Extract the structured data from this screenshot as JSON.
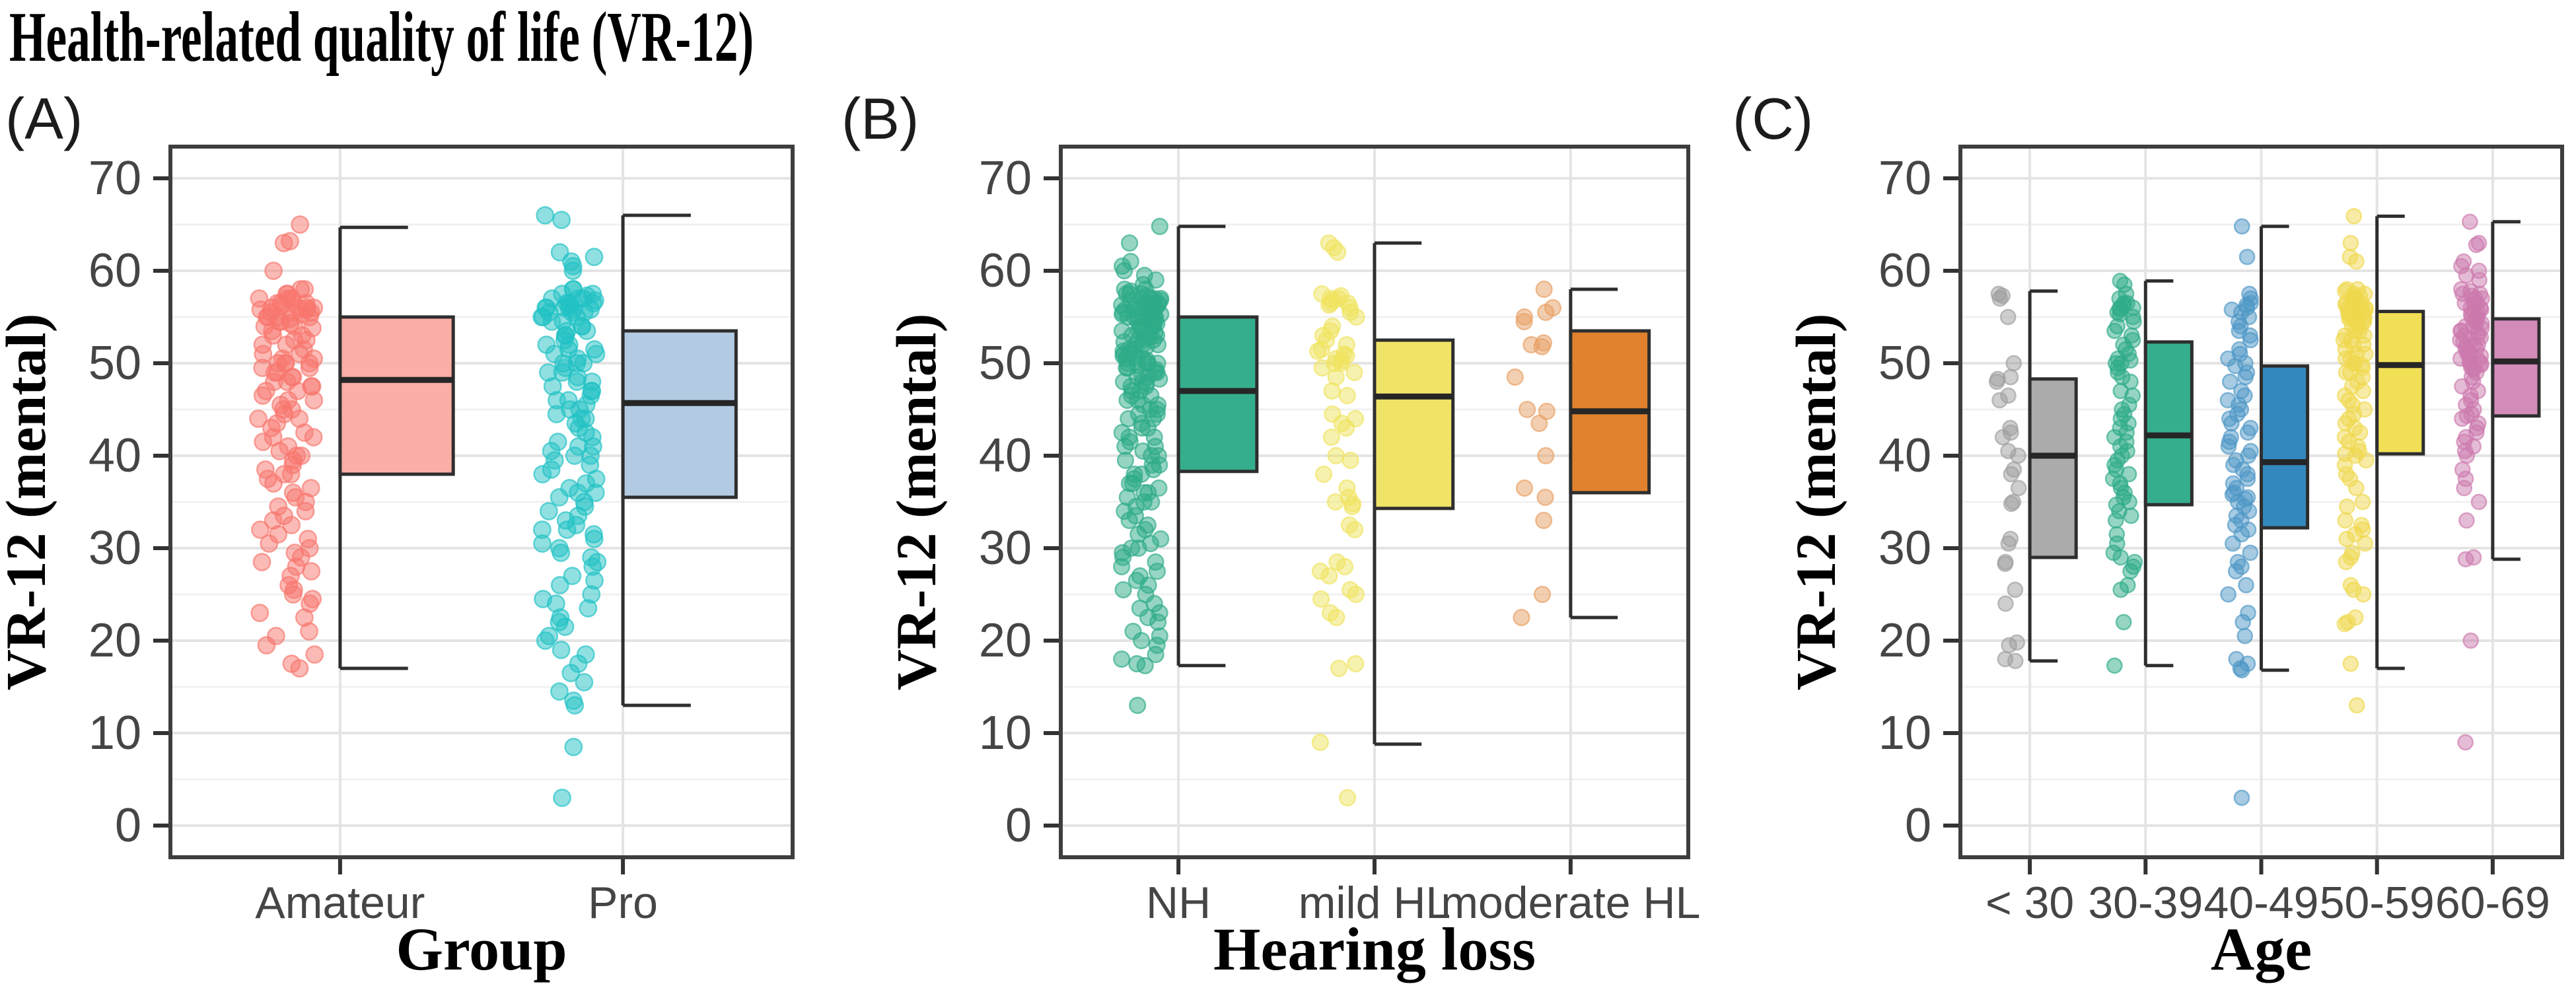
{
  "figure": {
    "title": "Health-related quality of life (VR-12)"
  },
  "chart_data": [
    {
      "type": "boxplot+jitter",
      "panel_label": "(A)",
      "xlabel": "Group",
      "ylabel": "VR-12 (mental)",
      "ylim": [
        0,
        70
      ],
      "yticks": [
        0,
        10,
        20,
        30,
        40,
        50,
        60,
        70
      ],
      "grid": "major+minor, light gray on white, vertical line per category",
      "legend": "none",
      "categories": [
        {
          "label": "Amateur",
          "box_color": "#FBAEA6",
          "point_color": "#F8766D",
          "box": {
            "lower_whisker": 17,
            "q1": 38,
            "median": 48.2,
            "q3": 55,
            "upper_whisker": 64.7
          },
          "points": [
            65,
            63.2,
            63,
            60,
            58,
            58,
            57.5,
            57.5,
            57,
            57,
            57,
            56.8,
            56.5,
            56.5,
            56.5,
            56.3,
            56,
            56,
            56,
            56,
            55.8,
            55.8,
            55.5,
            55.5,
            55.5,
            55.3,
            55,
            55,
            55,
            55,
            54.8,
            54.5,
            54.5,
            54.3,
            54,
            54,
            53.8,
            53.5,
            53,
            53,
            52.5,
            52.5,
            52,
            52,
            51.5,
            51,
            51,
            50.5,
            50.5,
            50,
            50,
            50,
            50,
            49.5,
            49.5,
            49,
            49,
            48.5,
            48.5,
            48,
            48,
            47.5,
            47.5,
            47,
            47,
            46.5,
            46,
            46,
            45.5,
            45,
            45,
            44.5,
            44,
            44,
            43.5,
            43,
            42.5,
            42,
            42,
            41.5,
            41,
            40.5,
            40,
            40,
            39.5,
            39,
            38.5,
            38,
            38,
            37.5,
            37,
            36.5,
            36,
            35.5,
            35,
            34.5,
            34,
            33.5,
            33,
            32.5,
            32,
            31.5,
            31,
            30.5,
            30,
            29.5,
            29,
            28.5,
            28,
            27.5,
            27,
            26,
            25.5,
            25,
            24.5,
            24,
            23,
            22.5,
            21,
            20.5,
            19.5,
            18.5,
            17.5,
            17
          ]
        },
        {
          "label": "Pro",
          "box_color": "#B3CBE2",
          "point_color": "#21C1C4",
          "box": {
            "lower_whisker": 13,
            "q1": 35.5,
            "median": 45.7,
            "q3": 53.5,
            "upper_whisker": 66
          },
          "points": [
            66,
            65.5,
            62,
            61.5,
            61,
            60.5,
            60,
            58,
            58,
            57.5,
            57.5,
            57.3,
            57,
            57,
            57,
            56.8,
            56.5,
            56.5,
            56.5,
            56.3,
            56,
            56,
            56,
            56,
            55.8,
            55.8,
            55.5,
            55.5,
            55.5,
            55,
            55,
            55,
            54.5,
            54.5,
            54,
            54,
            53.5,
            53.5,
            53,
            53,
            52.5,
            52,
            52,
            51.5,
            51.5,
            51,
            51,
            50.5,
            50,
            50,
            50,
            49.5,
            49,
            49,
            48.5,
            48,
            48,
            47.5,
            47,
            47,
            46.5,
            46,
            46,
            45.5,
            45,
            45,
            44.5,
            44,
            44,
            43.5,
            43,
            42.5,
            42,
            41.5,
            41,
            41,
            40.5,
            40,
            40,
            39.5,
            39,
            38.5,
            38,
            37.5,
            37,
            36.5,
            36,
            36,
            35.5,
            35,
            34.5,
            34,
            33.5,
            33,
            32.5,
            32,
            32,
            31.5,
            31,
            30.5,
            30,
            29.5,
            29,
            28.5,
            28,
            27,
            26.5,
            26,
            25,
            24.5,
            24,
            23.5,
            22.5,
            22,
            21.5,
            20.5,
            20,
            19,
            18.5,
            17.5,
            16.5,
            15.5,
            14.5,
            13.5,
            13,
            8.5,
            3
          ]
        }
      ]
    },
    {
      "type": "boxplot+jitter",
      "panel_label": "(B)",
      "xlabel": "Hearing loss",
      "ylabel": "VR-12 (mental)",
      "ylim": [
        0,
        70
      ],
      "yticks": [
        0,
        10,
        20,
        30,
        40,
        50,
        60,
        70
      ],
      "grid": "major+minor, light gray on white, vertical line per category",
      "legend": "none",
      "categories": [
        {
          "label": "NH",
          "box_color": "#35AE8D",
          "point_color": "#2EAB88",
          "box": {
            "lower_whisker": 17.3,
            "q1": 38.3,
            "median": 47,
            "q3": 55,
            "upper_whisker": 64.8
          },
          "points": [
            64.8,
            63,
            61,
            60.5,
            60,
            59.5,
            59,
            58.5,
            58,
            58,
            57.8,
            57.5,
            57.5,
            57.5,
            57.3,
            57,
            57,
            57,
            57,
            56.8,
            56.8,
            56.5,
            56.5,
            56.5,
            56.5,
            56.3,
            56.3,
            56,
            56,
            56,
            56,
            56,
            55.8,
            55.8,
            55.8,
            55.5,
            55.5,
            55.5,
            55.5,
            55.3,
            55.3,
            55,
            55,
            55,
            55,
            55,
            54.8,
            54.5,
            54.5,
            54.5,
            54.3,
            54,
            54,
            54,
            53.8,
            53.5,
            53.5,
            53.5,
            53.3,
            53,
            53,
            53,
            52.8,
            52.5,
            52.5,
            52.5,
            52.3,
            52,
            52,
            52,
            51.8,
            51.5,
            51.5,
            51.3,
            51,
            51,
            51,
            50.8,
            50.5,
            50.5,
            50.5,
            50.3,
            50,
            50,
            50,
            50,
            49.8,
            49.5,
            49.5,
            49.3,
            49,
            49,
            48.8,
            48.5,
            48.5,
            48.3,
            48,
            48,
            47.8,
            47.5,
            47.5,
            47,
            47,
            46.5,
            46.5,
            46,
            46,
            45.5,
            45.5,
            45,
            45,
            44.5,
            44.5,
            44,
            44,
            43.5,
            43,
            43,
            42.5,
            42,
            42,
            41.5,
            41,
            41,
            40.5,
            40,
            40,
            39.5,
            39,
            39,
            38.5,
            38,
            38,
            37.5,
            37,
            37,
            36.5,
            36,
            36,
            35.5,
            35,
            35,
            34.5,
            34,
            33.5,
            33,
            32.5,
            32,
            31.5,
            31,
            30.5,
            30,
            30,
            29.5,
            29,
            28.5,
            28,
            27.5,
            27,
            26.5,
            26,
            25.5,
            25,
            24,
            23.5,
            23,
            22.5,
            22,
            21,
            20.5,
            20,
            19.5,
            18.5,
            18,
            17.5,
            17.3,
            13
          ]
        },
        {
          "label": "mild HL",
          "box_color": "#F0E468",
          "point_color": "#EFE35D",
          "box": {
            "lower_whisker": 8.8,
            "q1": 34.3,
            "median": 46.4,
            "q3": 52.5,
            "upper_whisker": 63
          },
          "points": [
            63,
            62.5,
            62,
            57.5,
            57.3,
            57,
            57,
            56.8,
            56.5,
            56.5,
            56.3,
            56,
            55.5,
            55,
            54,
            53.5,
            53,
            52.5,
            52,
            51.5,
            51.3,
            51,
            50.8,
            50.5,
            50.3,
            50,
            50,
            49.5,
            49,
            48.5,
            47,
            46.5,
            44.5,
            44,
            43.5,
            43,
            42,
            40,
            39.5,
            38,
            36.5,
            35.5,
            35,
            34.8,
            34.5,
            32.5,
            32,
            28.5,
            28,
            27.5,
            27,
            25.5,
            25,
            24.5,
            23,
            22.5,
            17.5,
            17,
            9,
            3
          ]
        },
        {
          "label": "moderate HL",
          "box_color": "#E0812E",
          "point_color": "#E8A064",
          "box": {
            "lower_whisker": 22.5,
            "q1": 36,
            "median": 44.8,
            "q3": 53.5,
            "upper_whisker": 58
          },
          "points": [
            58,
            56,
            55.5,
            55,
            54.5,
            52.2,
            52,
            51.8,
            48.5,
            45,
            44.8,
            43.5,
            40,
            36.5,
            35.5,
            33,
            25,
            22.5
          ]
        }
      ]
    },
    {
      "type": "boxplot+jitter",
      "panel_label": "(C)",
      "xlabel": "Age",
      "ylabel": "VR-12 (mental)",
      "ylim": [
        0,
        70
      ],
      "yticks": [
        0,
        10,
        20,
        30,
        40,
        50,
        60,
        70
      ],
      "grid": "major+minor, light gray on white, vertical line per category",
      "legend": "none",
      "categories": [
        {
          "label": "< 30",
          "box_color": "#ABABAB",
          "point_color": "#9E9E9E",
          "box": {
            "lower_whisker": 17.8,
            "q1": 29,
            "median": 40,
            "q3": 48.3,
            "upper_whisker": 57.8
          },
          "points": [
            57.5,
            57.3,
            57,
            55,
            50,
            48.5,
            48.3,
            48,
            46.5,
            46,
            43,
            42.5,
            42,
            40.5,
            40,
            38.5,
            38,
            36.5,
            35,
            34.8,
            31,
            30.5,
            28.5,
            28.3,
            25.5,
            24,
            19.8,
            19.5,
            18,
            17.8
          ]
        },
        {
          "label": "30-39",
          "box_color": "#35AE8D",
          "point_color": "#2EAB88",
          "box": {
            "lower_whisker": 17.3,
            "q1": 34.7,
            "median": 42.2,
            "q3": 52.3,
            "upper_whisker": 58.9
          },
          "points": [
            58.9,
            58.5,
            57.5,
            57,
            56.5,
            56.5,
            56.3,
            56,
            56,
            55.8,
            55.5,
            55.3,
            55,
            54.5,
            54,
            53.5,
            53,
            52.5,
            52,
            51.5,
            51,
            50.5,
            50.3,
            50,
            50,
            49.5,
            49,
            48.5,
            48,
            47,
            46.5,
            45.5,
            45,
            44.5,
            44,
            43.5,
            43,
            42.5,
            42,
            41.5,
            41,
            40.5,
            40,
            39.5,
            39,
            38.5,
            38,
            37.5,
            37,
            36.5,
            36,
            35.5,
            35,
            34.7,
            34,
            33.5,
            33,
            31.5,
            30.5,
            29.5,
            29,
            28.5,
            28,
            27.5,
            26,
            25.5,
            22,
            17.3
          ]
        },
        {
          "label": "40-49",
          "box_color": "#3389BD",
          "point_color": "#4E97C6",
          "box": {
            "lower_whisker": 16.8,
            "q1": 32.2,
            "median": 39.3,
            "q3": 49.7,
            "upper_whisker": 64.8
          },
          "points": [
            64.8,
            61.5,
            57.5,
            57,
            56.5,
            56.3,
            56,
            55.8,
            55.5,
            55,
            54.5,
            54,
            53.5,
            53,
            52.5,
            51.5,
            51,
            50.5,
            50,
            49.7,
            49,
            48.5,
            48,
            47,
            46.5,
            46,
            45.5,
            45,
            44.5,
            44,
            43.5,
            43,
            42.5,
            42,
            41.5,
            41,
            40.5,
            40,
            39.5,
            39,
            38.5,
            38,
            37.5,
            37,
            36.5,
            36,
            35.8,
            35.5,
            35.3,
            35,
            34.5,
            34,
            33.5,
            33,
            32.5,
            32,
            31.5,
            30.5,
            29.5,
            28.5,
            28,
            27.5,
            26,
            25,
            23,
            22,
            20.5,
            18,
            17.5,
            17,
            16.8,
            3
          ]
        },
        {
          "label": "50-59",
          "box_color": "#F1DF55",
          "point_color": "#EFD84D",
          "box": {
            "lower_whisker": 17,
            "q1": 40.2,
            "median": 49.8,
            "q3": 55.6,
            "upper_whisker": 65.9
          },
          "points": [
            65.9,
            63,
            61.5,
            61,
            58,
            58,
            57.8,
            57.5,
            57.5,
            57.3,
            57,
            57,
            57,
            56.8,
            56.5,
            56.5,
            56.5,
            56.3,
            56,
            56,
            56,
            55.8,
            55.8,
            55.5,
            55.5,
            55.5,
            55.3,
            55,
            55,
            55,
            54.8,
            54.5,
            54.5,
            54.3,
            54,
            54,
            53.5,
            53.5,
            53,
            53,
            52.5,
            52.5,
            52,
            52,
            51.5,
            51,
            51,
            50.5,
            50.5,
            50,
            50,
            49.8,
            49.5,
            49,
            49,
            48.5,
            48,
            47.5,
            47,
            46.5,
            46,
            45.5,
            45,
            44.5,
            44,
            43.5,
            43,
            42.5,
            42,
            41.5,
            41,
            40.5,
            40.2,
            40,
            39.5,
            39,
            38,
            37.5,
            36.5,
            35,
            34.5,
            33,
            32.5,
            32,
            31.5,
            31,
            30.5,
            29.5,
            29,
            28.5,
            26,
            25.5,
            25,
            22.5,
            22,
            21.8,
            17.5,
            13
          ]
        },
        {
          "label": "60-69",
          "box_color": "#D38BBA",
          "point_color": "#CC79AE",
          "box": {
            "lower_whisker": 28.8,
            "q1": 44.3,
            "median": 50.2,
            "q3": 54.8,
            "upper_whisker": 65.3
          },
          "points": [
            65.3,
            63,
            62.8,
            61,
            60.5,
            60,
            59.5,
            59,
            58,
            57.8,
            57.5,
            57.5,
            57.3,
            57,
            57,
            56.8,
            56.5,
            56.5,
            56.3,
            56,
            56,
            55.8,
            55.5,
            55.5,
            55.3,
            55,
            55,
            54.8,
            54.5,
            54.5,
            54.3,
            54,
            54,
            53.8,
            53.5,
            53.5,
            53.3,
            53,
            53,
            52.8,
            52.5,
            52.5,
            52.3,
            52,
            52,
            51.8,
            51.5,
            51.5,
            51.3,
            51,
            51,
            50.8,
            50.5,
            50.5,
            50.3,
            50,
            50,
            50,
            49.8,
            49.5,
            49.5,
            49.3,
            49,
            48.5,
            48,
            47.5,
            47,
            46.5,
            46,
            45.5,
            45,
            44.5,
            44.3,
            44,
            43.5,
            43,
            42.5,
            42,
            41.5,
            41,
            40.5,
            40,
            38.5,
            37.5,
            36.5,
            35,
            33,
            29,
            28.8,
            20,
            9
          ]
        }
      ]
    }
  ],
  "style_colors": {
    "panel_border": "#3E3E3E",
    "box_stroke": "#2E2E2E",
    "median_stroke": "#262626",
    "grid_major": "#E4E4E4",
    "grid_minor": "#F1F1F1",
    "tick_label": "#454545"
  }
}
